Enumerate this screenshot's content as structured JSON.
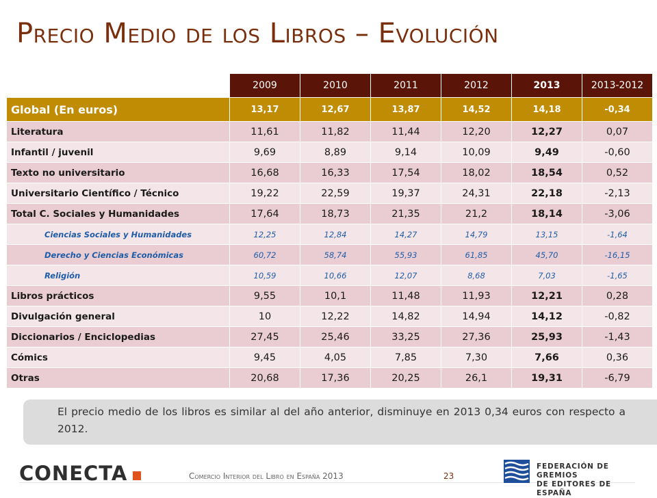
{
  "title": "Precio Medio de los Libros – Evolución",
  "table": {
    "headers": [
      "2009",
      "2010",
      "2011",
      "2012",
      "2013",
      "2013-2012"
    ],
    "global": {
      "label": "Global (En euros)",
      "values": [
        "13,17",
        "12,67",
        "13,87",
        "14,52",
        "14,18",
        "-0,34"
      ]
    },
    "rows": [
      {
        "label": "Literatura",
        "values": [
          "11,61",
          "11,82",
          "11,44",
          "12,20",
          "12,27",
          "0,07"
        ]
      },
      {
        "label": "Infantil / juvenil",
        "values": [
          "9,69",
          "8,89",
          "9,14",
          "10,09",
          "9,49",
          "-0,60"
        ]
      },
      {
        "label": "Texto no universitario",
        "values": [
          "16,68",
          "16,33",
          "17,54",
          "18,02",
          "18,54",
          "0,52"
        ]
      },
      {
        "label": "Universitario Científico / Técnico",
        "values": [
          "19,22",
          "22,59",
          "19,37",
          "24,31",
          "22,18",
          "-2,13"
        ]
      },
      {
        "label": "Total C. Sociales y Humanidades",
        "values": [
          "17,64",
          "18,73",
          "21,35",
          "21,2",
          "18,14",
          "-3,06"
        ]
      },
      {
        "label": "Ciencias Sociales y Humanidades",
        "values": [
          "12,25",
          "12,84",
          "14,27",
          "14,79",
          "13,15",
          "-1,64"
        ]
      },
      {
        "label": "Derecho y Ciencias Económicas",
        "values": [
          "60,72",
          "58,74",
          "55,93",
          "61,85",
          "45,70",
          "-16,15"
        ]
      },
      {
        "label": "Religión",
        "values": [
          "10,59",
          "10,66",
          "12,07",
          "8,68",
          "7,03",
          "-1,65"
        ]
      },
      {
        "label": "Libros prácticos",
        "values": [
          "9,55",
          "10,1",
          "11,48",
          "11,93",
          "12,21",
          "0,28"
        ]
      },
      {
        "label": "Divulgación general",
        "values": [
          "10",
          "12,22",
          "14,82",
          "14,94",
          "14,12",
          "-0,82"
        ]
      },
      {
        "label": "Diccionarios / Enciclopedias",
        "values": [
          "27,45",
          "25,46",
          "33,25",
          "27,36",
          "25,93",
          "-1,43"
        ]
      },
      {
        "label": "Cómics",
        "values": [
          "9,45",
          "4,05",
          "7,85",
          "7,30",
          "7,66",
          "0,36"
        ]
      },
      {
        "label": "Otras",
        "values": [
          "20,68",
          "17,36",
          "20,25",
          "26,1",
          "19,31",
          "-6,79"
        ]
      }
    ]
  },
  "note": "El precio medio de los libros es similar al del año anterior, disminuye en 2013 0,34 euros con respecto a 2012.",
  "footer": {
    "logo_text": "CONECTA",
    "caption": "Comercio Interior del Libro en España 2013",
    "page": "23",
    "federation_line1": "FEDERACIÓN DE GREMIOS",
    "federation_line2": "DE EDITORES DE ESPAÑA"
  },
  "colors": {
    "title": "#7a2f0c",
    "header_bg": "#5b1508",
    "global_bg": "#bf8c04",
    "row_dark": "#e9cdd2",
    "row_light": "#f4e6e8",
    "sub_text": "#1f5ca8",
    "logo_accent": "#e0531f"
  }
}
